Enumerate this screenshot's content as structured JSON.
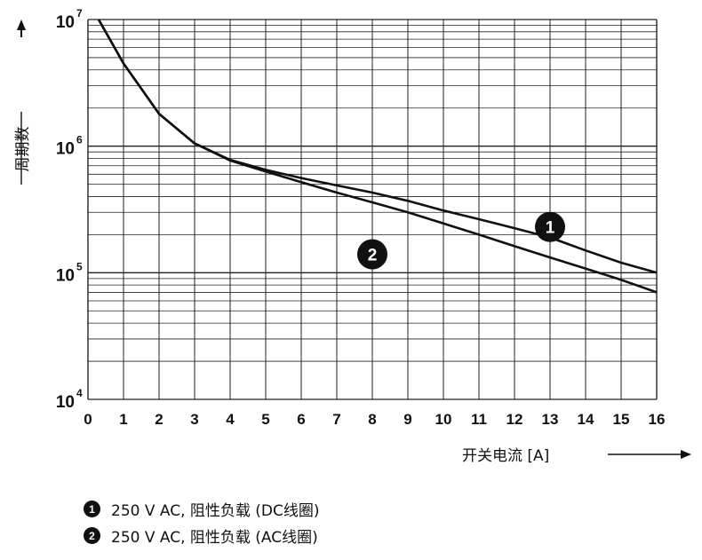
{
  "chart_data": {
    "type": "line",
    "y_scale": "log",
    "grid": true,
    "xlabel": "开关电流 [A]",
    "ylabel": "周期数",
    "xlim": [
      0,
      16
    ],
    "ylim": [
      10000,
      10000000
    ],
    "x_ticks": [
      "0",
      "1",
      "2",
      "3",
      "4",
      "5",
      "6",
      "7",
      "8",
      "9",
      "10",
      "11",
      "12",
      "13",
      "14",
      "15",
      "16"
    ],
    "y_ticks": [
      {
        "base": "10",
        "exp": "4",
        "value": 10000
      },
      {
        "base": "10",
        "exp": "5",
        "value": 100000
      },
      {
        "base": "10",
        "exp": "6",
        "value": 1000000
      },
      {
        "base": "10",
        "exp": "7",
        "value": 10000000
      }
    ],
    "series": [
      {
        "name": "250 V AC, 阻性负载 (DC线圈)",
        "marker": "1",
        "points": [
          [
            0.3,
            10000000
          ],
          [
            1,
            4500000
          ],
          [
            2,
            1800000
          ],
          [
            3,
            1050000
          ],
          [
            4,
            780000
          ],
          [
            5,
            650000
          ],
          [
            6,
            560000
          ],
          [
            7,
            490000
          ],
          [
            8,
            430000
          ],
          [
            9,
            370000
          ],
          [
            10,
            310000
          ],
          [
            11,
            265000
          ],
          [
            12,
            225000
          ],
          [
            13,
            190000
          ],
          [
            14,
            150000
          ],
          [
            15,
            120000
          ],
          [
            16,
            100000
          ]
        ]
      },
      {
        "name": "250 V AC, 阻性负载 (AC线圈)",
        "marker": "2",
        "points": [
          [
            0.3,
            10000000
          ],
          [
            1,
            4500000
          ],
          [
            2,
            1800000
          ],
          [
            3,
            1050000
          ],
          [
            4,
            770000
          ],
          [
            5,
            630000
          ],
          [
            6,
            520000
          ],
          [
            7,
            430000
          ],
          [
            8,
            360000
          ],
          [
            9,
            300000
          ],
          [
            10,
            245000
          ],
          [
            11,
            200000
          ],
          [
            12,
            162000
          ],
          [
            13,
            132000
          ],
          [
            14,
            108000
          ],
          [
            15,
            88000
          ],
          [
            16,
            70000
          ]
        ]
      }
    ],
    "annotations": [
      {
        "label": "1",
        "x": 13.0,
        "y": 230000
      },
      {
        "label": "2",
        "x": 8.0,
        "y": 140000
      }
    ]
  },
  "legend": [
    {
      "marker": "1",
      "text": "250 V AC, 阻性负载 (DC线圈)"
    },
    {
      "marker": "2",
      "text": "250 V AC, 阻性负载 (AC线圈)"
    }
  ]
}
